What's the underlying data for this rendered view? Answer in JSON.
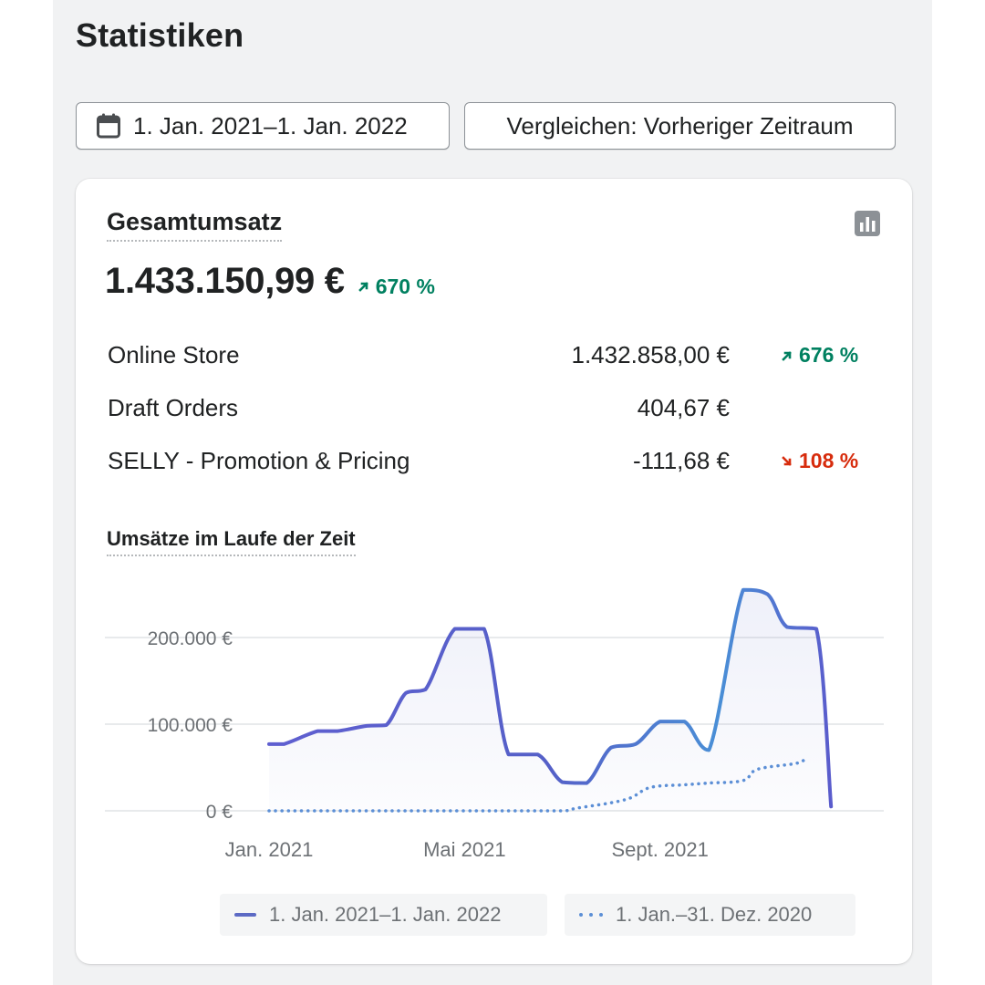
{
  "page": {
    "title": "Statistiken"
  },
  "toolbar": {
    "date_range_label": "1. Jan. 2021–1. Jan. 2022",
    "compare_label": "Vergleichen: Vorheriger Zeitraum",
    "icons": {
      "date": "calendar-icon"
    }
  },
  "card": {
    "title": "Gesamtumsatz",
    "chart_toggle_icon": "bar-chart-icon",
    "total": "1.433.150,99 €",
    "total_change": "670 %",
    "total_change_direction": "up",
    "breakdown": [
      {
        "name": "Online Store",
        "amount": "1.432.858,00 €",
        "change": "676 %",
        "direction": "up"
      },
      {
        "name": "Draft Orders",
        "amount": "404,67 €",
        "change": "",
        "direction": ""
      },
      {
        "name": "SELLY - Promotion & Pricing",
        "amount": "-111,68 €",
        "change": "108 %",
        "direction": "down"
      }
    ],
    "colors": {
      "up": "#008060",
      "down": "#d72c0d",
      "primary_series": "#5c6ac4",
      "comparison_series": "#5c8fd6"
    }
  },
  "chart_data": {
    "type": "line",
    "title": "Umsätze im Laufe der Zeit",
    "y_tick_labels": [
      "0 €",
      "100.000 €",
      "200.000 €"
    ],
    "y_ticks": [
      0,
      100000,
      200000
    ],
    "ylim": [
      0,
      280000
    ],
    "x_tick_labels": [
      "Jan. 2021",
      "Mai 2021",
      "Sept. 2021"
    ],
    "x_tick_positions": [
      0,
      4,
      8
    ],
    "xlim": [
      0,
      12
    ],
    "grid": true,
    "legend_position": "bottom",
    "series": [
      {
        "name": "1. Jan. 2021–1. Jan. 2022",
        "style": "solid",
        "x": [
          0,
          0.3,
          1,
          1.4,
          2,
          2.4,
          2.8,
          3.2,
          3.8,
          4.4,
          4.9,
          5.5,
          6.0,
          6.5,
          7.0,
          7.5,
          8.0,
          8.5,
          9.0,
          9.7,
          10.2,
          10.6,
          11.2,
          11.5
        ],
        "values": [
          77000,
          77000,
          92000,
          92000,
          98000,
          99000,
          136000,
          140000,
          210000,
          210000,
          65000,
          65000,
          33000,
          32000,
          73000,
          77000,
          103000,
          103000,
          70000,
          255000,
          250000,
          212000,
          210000,
          5000
        ]
      },
      {
        "name": "1. Jan.–31. Dez. 2020",
        "style": "dotted",
        "x": [
          0,
          1,
          2,
          3,
          4,
          5,
          6,
          6.3,
          7.3,
          7.8,
          8.5,
          9.0,
          9.7,
          10.0,
          10.8,
          11.0
        ],
        "values": [
          0,
          0,
          0,
          0,
          0,
          0,
          0,
          3000,
          13000,
          27000,
          30000,
          32000,
          35000,
          48000,
          55000,
          62000
        ]
      }
    ]
  }
}
